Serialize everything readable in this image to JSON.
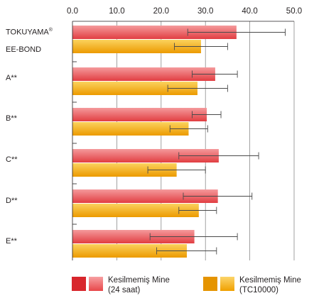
{
  "chart_data": {
    "type": "bar",
    "orientation": "horizontal",
    "categories": [
      "TOKUYAMA® EE-BOND",
      "A**",
      "B**",
      "C**",
      "D**",
      "E**"
    ],
    "category_label_lines": [
      [
        "TOKUYAMA",
        "®",
        "EE-BOND"
      ],
      [
        "A**"
      ],
      [
        "B**"
      ],
      [
        "C**"
      ],
      [
        "D**"
      ],
      [
        "E**"
      ]
    ],
    "xlim": [
      0,
      50
    ],
    "xticks": [
      "0.0",
      "10.0",
      "20.0",
      "30.0",
      "40.0",
      "50.0"
    ],
    "xtick_values": [
      0,
      10,
      20,
      30,
      40,
      50
    ],
    "grid": true,
    "legend_position": "bottom",
    "series": [
      {
        "name": "Kesilmemiş Mine (24 saat)",
        "legend_lines": [
          "Kesilmemiş Mine",
          "(24 saat)"
        ],
        "color": "#e8474a",
        "color_light": "#f28a8c",
        "values": [
          37.0,
          32.2,
          30.3,
          33.0,
          32.8,
          27.5
        ],
        "errors": [
          [
            26.0,
            48.0
          ],
          [
            27.0,
            37.2
          ],
          [
            27.0,
            33.5
          ],
          [
            24.0,
            42.0
          ],
          [
            25.0,
            40.5
          ],
          [
            17.5,
            37.2
          ]
        ]
      },
      {
        "name": "Kesilmemiş Mine (TC10000)",
        "legend_lines": [
          "Kesilmemiş Mine",
          "(TC10000)"
        ],
        "color": "#f0a000",
        "color_light": "#f8c84a",
        "values": [
          29.0,
          28.2,
          26.2,
          23.5,
          28.5,
          25.8
        ],
        "errors": [
          [
            23.0,
            35.0
          ],
          [
            21.5,
            35.0
          ],
          [
            22.0,
            30.5
          ],
          [
            17.0,
            30.0
          ],
          [
            24.0,
            32.5
          ],
          [
            19.0,
            32.5
          ]
        ]
      }
    ]
  }
}
